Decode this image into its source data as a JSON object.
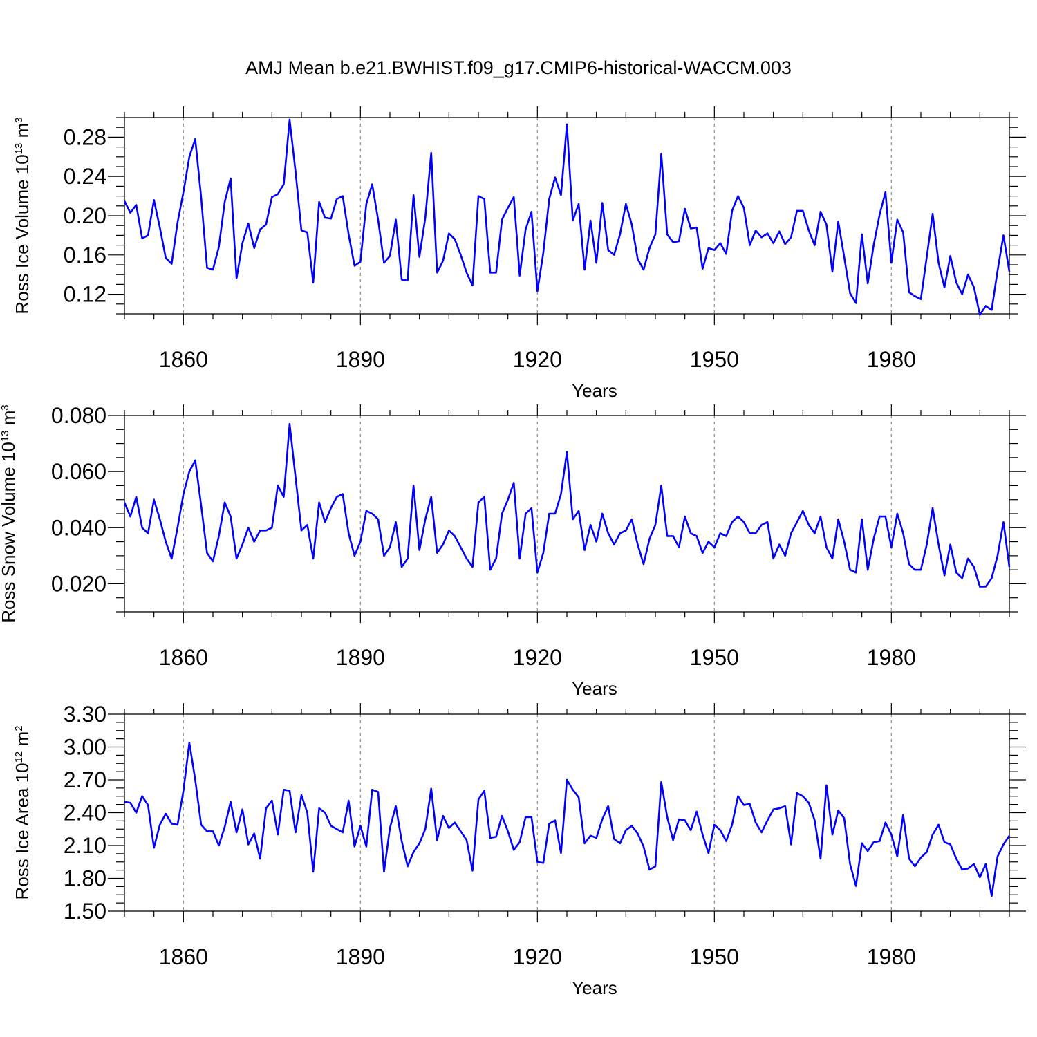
{
  "title": "AMJ Mean b.e21.BWHIST.f09_g17.CMIP6-historical-WACCM.003",
  "line_color": "#0000ff",
  "chart_data": [
    {
      "type": "line",
      "ylabel": "Ross Ice Volume 10",
      "ylabel_exp": "13",
      "ylabel_unit": "m",
      "ylabel_unit_exp": "3",
      "xlabel": "Years",
      "xlim": [
        1850,
        2000
      ],
      "ylim": [
        0.1,
        0.3
      ],
      "xticks": [
        1860,
        1890,
        1920,
        1950,
        1980
      ],
      "yticks": [
        0.12,
        0.16,
        0.2,
        0.24,
        0.28
      ],
      "ytick_labels": [
        "0.12",
        "0.16",
        "0.20",
        "0.24",
        "0.28"
      ],
      "x_start": 1850,
      "values": [
        0.215,
        0.203,
        0.211,
        0.177,
        0.18,
        0.216,
        0.188,
        0.157,
        0.151,
        0.193,
        0.224,
        0.26,
        0.278,
        0.219,
        0.147,
        0.145,
        0.168,
        0.214,
        0.238,
        0.136,
        0.172,
        0.192,
        0.167,
        0.186,
        0.191,
        0.219,
        0.222,
        0.232,
        0.298,
        0.245,
        0.185,
        0.183,
        0.132,
        0.214,
        0.198,
        0.197,
        0.217,
        0.22,
        0.181,
        0.149,
        0.153,
        0.212,
        0.232,
        0.196,
        0.152,
        0.159,
        0.196,
        0.135,
        0.134,
        0.221,
        0.158,
        0.198,
        0.264,
        0.142,
        0.154,
        0.182,
        0.176,
        0.16,
        0.142,
        0.129,
        0.22,
        0.217,
        0.142,
        0.142,
        0.196,
        0.208,
        0.219,
        0.139,
        0.186,
        0.204,
        0.123,
        0.162,
        0.217,
        0.239,
        0.221,
        0.293,
        0.195,
        0.212,
        0.145,
        0.195,
        0.152,
        0.213,
        0.165,
        0.16,
        0.181,
        0.212,
        0.191,
        0.156,
        0.145,
        0.167,
        0.181,
        0.263,
        0.181,
        0.173,
        0.174,
        0.207,
        0.187,
        0.188,
        0.146,
        0.167,
        0.165,
        0.172,
        0.161,
        0.205,
        0.22,
        0.208,
        0.17,
        0.185,
        0.178,
        0.182,
        0.172,
        0.184,
        0.171,
        0.178,
        0.205,
        0.205,
        0.185,
        0.17,
        0.204,
        0.191,
        0.143,
        0.194,
        0.158,
        0.121,
        0.111,
        0.181,
        0.131,
        0.17,
        0.201,
        0.224,
        0.152,
        0.196,
        0.183,
        0.122,
        0.118,
        0.115,
        0.158,
        0.202,
        0.152,
        0.127,
        0.159,
        0.132,
        0.12,
        0.14,
        0.127,
        0.099,
        0.108,
        0.104,
        0.144,
        0.18,
        0.143
      ]
    },
    {
      "type": "line",
      "ylabel": "Ross Snow Volume 10",
      "ylabel_exp": "13",
      "ylabel_unit": "m",
      "ylabel_unit_exp": "3",
      "xlabel": "Years",
      "xlim": [
        1850,
        2000
      ],
      "ylim": [
        0.01,
        0.08
      ],
      "xticks": [
        1860,
        1890,
        1920,
        1950,
        1980
      ],
      "yticks": [
        0.02,
        0.04,
        0.06,
        0.08
      ],
      "ytick_labels": [
        "0.020",
        "0.040",
        "0.060",
        "0.080"
      ],
      "x_start": 1850,
      "values": [
        0.049,
        0.044,
        0.051,
        0.04,
        0.038,
        0.05,
        0.043,
        0.035,
        0.029,
        0.04,
        0.052,
        0.06,
        0.064,
        0.048,
        0.031,
        0.028,
        0.037,
        0.049,
        0.044,
        0.029,
        0.034,
        0.04,
        0.035,
        0.039,
        0.039,
        0.04,
        0.055,
        0.051,
        0.077,
        0.058,
        0.039,
        0.041,
        0.029,
        0.049,
        0.042,
        0.047,
        0.051,
        0.052,
        0.038,
        0.03,
        0.035,
        0.046,
        0.045,
        0.043,
        0.03,
        0.033,
        0.042,
        0.026,
        0.029,
        0.055,
        0.032,
        0.043,
        0.051,
        0.031,
        0.034,
        0.039,
        0.037,
        0.033,
        0.029,
        0.026,
        0.049,
        0.051,
        0.025,
        0.029,
        0.045,
        0.05,
        0.056,
        0.029,
        0.045,
        0.047,
        0.024,
        0.031,
        0.045,
        0.045,
        0.052,
        0.067,
        0.043,
        0.046,
        0.032,
        0.041,
        0.035,
        0.045,
        0.038,
        0.034,
        0.038,
        0.039,
        0.043,
        0.034,
        0.027,
        0.036,
        0.041,
        0.055,
        0.037,
        0.037,
        0.033,
        0.044,
        0.038,
        0.037,
        0.031,
        0.035,
        0.033,
        0.038,
        0.037,
        0.042,
        0.044,
        0.042,
        0.038,
        0.038,
        0.041,
        0.042,
        0.029,
        0.034,
        0.03,
        0.038,
        0.042,
        0.046,
        0.041,
        0.038,
        0.044,
        0.033,
        0.029,
        0.043,
        0.035,
        0.025,
        0.024,
        0.043,
        0.025,
        0.036,
        0.044,
        0.044,
        0.033,
        0.045,
        0.038,
        0.027,
        0.025,
        0.025,
        0.034,
        0.047,
        0.034,
        0.023,
        0.034,
        0.024,
        0.022,
        0.029,
        0.026,
        0.019,
        0.019,
        0.022,
        0.03,
        0.042,
        0.026
      ]
    },
    {
      "type": "line",
      "ylabel": "Ross Ice Area 10",
      "ylabel_exp": "12",
      "ylabel_unit": "m",
      "ylabel_unit_exp": "2",
      "xlabel": "Years",
      "xlim": [
        1850,
        2000
      ],
      "ylim": [
        1.5,
        3.3
      ],
      "xticks": [
        1860,
        1890,
        1920,
        1950,
        1980
      ],
      "yticks": [
        1.5,
        1.8,
        2.1,
        2.4,
        2.7,
        3.0,
        3.3
      ],
      "ytick_labels": [
        "1.50",
        "1.80",
        "2.10",
        "2.40",
        "2.70",
        "3.00",
        "3.30"
      ],
      "x_start": 1850,
      "values": [
        2.5,
        2.49,
        2.4,
        2.55,
        2.47,
        2.08,
        2.29,
        2.39,
        2.3,
        2.29,
        2.6,
        3.04,
        2.7,
        2.29,
        2.23,
        2.23,
        2.1,
        2.27,
        2.5,
        2.22,
        2.43,
        2.11,
        2.21,
        1.98,
        2.44,
        2.51,
        2.2,
        2.61,
        2.6,
        2.22,
        2.56,
        2.4,
        1.86,
        2.44,
        2.4,
        2.28,
        2.25,
        2.22,
        2.51,
        2.09,
        2.28,
        2.09,
        2.61,
        2.59,
        1.86,
        2.26,
        2.46,
        2.14,
        1.91,
        2.04,
        2.12,
        2.25,
        2.62,
        2.15,
        2.37,
        2.26,
        2.31,
        2.23,
        2.15,
        1.87,
        2.52,
        2.6,
        2.17,
        2.18,
        2.37,
        2.23,
        2.06,
        2.13,
        2.36,
        2.36,
        1.95,
        1.94,
        2.3,
        2.33,
        2.03,
        2.7,
        2.61,
        2.54,
        2.12,
        2.19,
        2.17,
        2.34,
        2.46,
        2.16,
        2.12,
        2.24,
        2.28,
        2.21,
        2.09,
        1.88,
        1.91,
        2.68,
        2.36,
        2.15,
        2.34,
        2.33,
        2.24,
        2.41,
        2.2,
        2.03,
        2.29,
        2.24,
        2.14,
        2.29,
        2.55,
        2.47,
        2.48,
        2.31,
        2.22,
        2.33,
        2.43,
        2.44,
        2.46,
        2.11,
        2.58,
        2.55,
        2.49,
        2.33,
        1.98,
        2.65,
        2.2,
        2.42,
        2.35,
        1.93,
        1.73,
        2.12,
        2.05,
        2.13,
        2.14,
        2.31,
        2.2,
        2.0,
        2.38,
        1.98,
        1.91,
        1.99,
        2.04,
        2.2,
        2.29,
        2.13,
        2.11,
        1.98,
        1.88,
        1.89,
        1.93,
        1.81,
        1.93,
        1.64,
        2.0,
        2.11,
        2.19
      ]
    }
  ]
}
